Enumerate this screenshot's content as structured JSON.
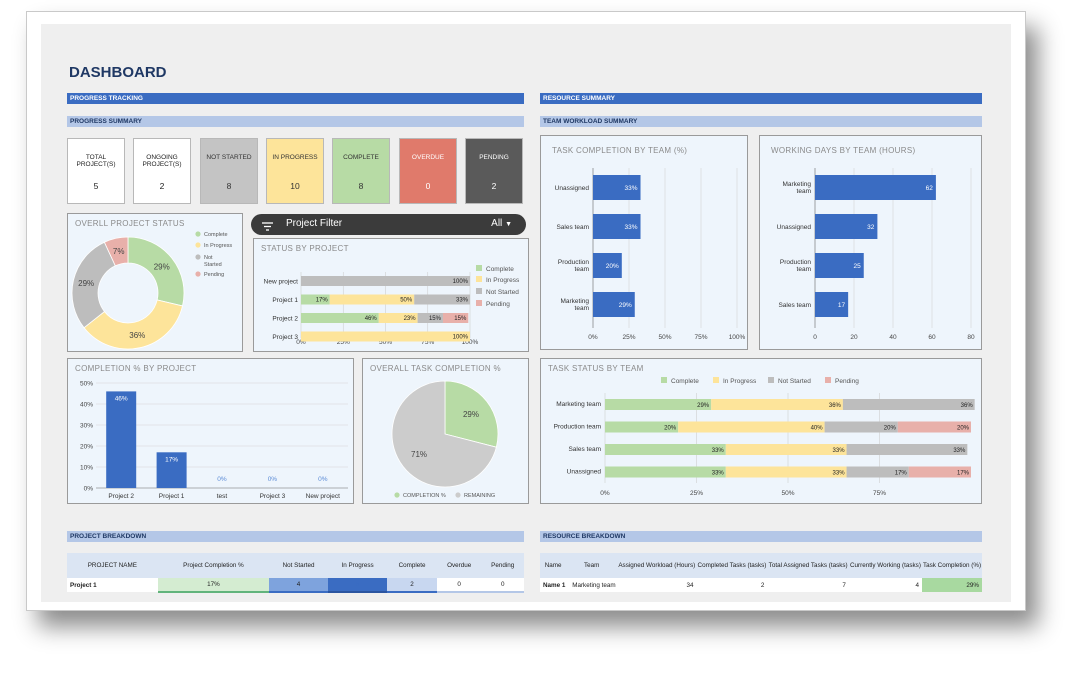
{
  "title": "DASHBOARD",
  "sections": {
    "progress_tracking": "PROGRESS TRACKING",
    "progress_summary": "PROGRESS SUMMARY",
    "resource_summary": "RESOURCE SUMMARY",
    "team_workload_summary": "TEAM WORKLOAD SUMMARY",
    "project_breakdown": "PROJECT BREAKDOWN",
    "resource_breakdown": "RESOURCE BREAKDOWN"
  },
  "kpis": [
    {
      "label": "TOTAL PROJECT(S)",
      "value": "5",
      "bg": "#ffffff",
      "fg": "#222222"
    },
    {
      "label": "ONGOING PROJECT(S)",
      "value": "2",
      "bg": "#ffffff",
      "fg": "#222222"
    },
    {
      "label": "NOT STARTED",
      "value": "8",
      "bg": "#c4c4c4",
      "fg": "#333333"
    },
    {
      "label": "IN PROGRESS",
      "value": "10",
      "bg": "#fde49a",
      "fg": "#333333"
    },
    {
      "label": "COMPLETE",
      "value": "8",
      "bg": "#b7dba5",
      "fg": "#333333"
    },
    {
      "label": "OVERDUE",
      "value": "0",
      "bg": "#e07a6b",
      "fg": "#ffffff"
    },
    {
      "label": "PENDING",
      "value": "2",
      "bg": "#5a5a5a",
      "fg": "#ffffff"
    }
  ],
  "filter": {
    "label": "Project Filter",
    "value": "All",
    "icon": "filter-icon"
  },
  "colors": {
    "complete": "#b7dba5",
    "in_progress": "#fde49a",
    "not_started": "#bdbdbd",
    "pending": "#e8b0aa",
    "blue": "#3a6cc2",
    "remaining": "#cccccc"
  },
  "chart_data": [
    {
      "id": "overall-status",
      "type": "pie",
      "title": "OVERLL PROJECT STATUS",
      "labels": [
        "Complete",
        "In Progress",
        "Not Started",
        "Pending"
      ],
      "values": [
        29,
        36,
        29,
        7
      ],
      "value_labels": [
        "29%",
        "36%",
        "29%",
        "7%"
      ],
      "legend": "right"
    },
    {
      "id": "status-by-project",
      "type": "bar",
      "title": "STATUS BY PROJECT",
      "categories": [
        "New project",
        "Project 1",
        "Project 2",
        "Project 3"
      ],
      "series": [
        {
          "name": "Complete",
          "values": [
            0,
            17,
            46,
            0
          ]
        },
        {
          "name": "In Progress",
          "values": [
            0,
            50,
            23,
            100
          ]
        },
        {
          "name": "Not Started",
          "values": [
            100,
            33,
            15,
            0
          ]
        },
        {
          "name": "Pending",
          "values": [
            0,
            0,
            15,
            0
          ]
        }
      ],
      "x_ticks": [
        "0%",
        "25%",
        "50%",
        "75%",
        "100%"
      ],
      "stacked": true,
      "orientation": "horizontal",
      "legend": "right"
    },
    {
      "id": "completion-by-project",
      "type": "bar",
      "title": "COMPLETION % BY PROJECT",
      "categories": [
        "Project 2",
        "Project 1",
        "test",
        "Project 3",
        "New project"
      ],
      "values": [
        46,
        17,
        0,
        0,
        0
      ],
      "y_ticks": [
        "0%",
        "10%",
        "20%",
        "30%",
        "40%",
        "50%"
      ],
      "ylim": [
        0,
        50
      ]
    },
    {
      "id": "overall-task-completion",
      "type": "pie",
      "title": "OVERALL TASK COMPLETION %",
      "labels": [
        "COMPLETION %",
        "REMAINING"
      ],
      "values": [
        29,
        71
      ],
      "value_labels": [
        "29%",
        "71%"
      ],
      "legend": "bottom"
    },
    {
      "id": "task-completion-by-team",
      "type": "bar",
      "title": "TASK COMPLETION BY TEAM (%)",
      "categories": [
        "Unassigned",
        "Sales team",
        "Production team",
        "Marketing team"
      ],
      "values": [
        33,
        33,
        20,
        29
      ],
      "x_ticks": [
        "0%",
        "25%",
        "50%",
        "75%",
        "100%"
      ],
      "xlim": [
        0,
        100
      ],
      "orientation": "horizontal"
    },
    {
      "id": "working-days-by-team",
      "type": "bar",
      "title": "WORKING DAYS BY TEAM (HOURS)",
      "categories": [
        "Marketing team",
        "Unassigned",
        "Production team",
        "Sales team"
      ],
      "values": [
        62,
        32,
        25,
        17
      ],
      "x_ticks": [
        "0",
        "20",
        "40",
        "60",
        "80"
      ],
      "xlim": [
        0,
        80
      ],
      "orientation": "horizontal"
    },
    {
      "id": "task-status-by-team",
      "type": "bar",
      "title": "TASK STATUS BY TEAM",
      "categories": [
        "Marketing team",
        "Production team",
        "Sales team",
        "Unassigned"
      ],
      "series": [
        {
          "name": "Complete",
          "values": [
            29,
            20,
            33,
            33
          ]
        },
        {
          "name": "In Progress",
          "values": [
            36,
            40,
            33,
            33
          ]
        },
        {
          "name": "Not Started",
          "values": [
            36,
            20,
            33,
            17
          ]
        },
        {
          "name": "Pending",
          "values": [
            0,
            20,
            0,
            17
          ]
        }
      ],
      "x_ticks": [
        "0%",
        "25%",
        "50%",
        "75%"
      ],
      "stacked": true,
      "orientation": "horizontal",
      "legend": "top"
    }
  ],
  "project_table": {
    "headers": [
      "PROJECT NAME",
      "Project Completion %",
      "Not Started",
      "In Progress",
      "Complete",
      "Overdue",
      "Pending"
    ],
    "rows": [
      [
        "Project 1",
        "17%",
        "4",
        "6",
        "2",
        "0",
        "0"
      ]
    ]
  },
  "resource_table": {
    "headers": [
      "Name",
      "Team",
      "Assigned Workload (Hours)",
      "Completed Tasks (tasks)",
      "Total Assigned Tasks (tasks)",
      "Currently Working (tasks)",
      "Task Completion (%)"
    ],
    "rows": [
      [
        "Name 1",
        "Marketing team",
        "34",
        "2",
        "7",
        "4",
        "29%"
      ]
    ]
  }
}
